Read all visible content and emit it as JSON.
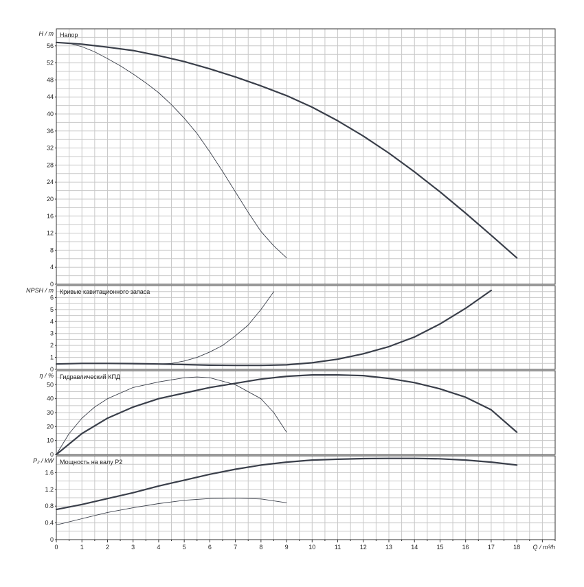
{
  "chart_data": {
    "type": "line",
    "xlabel": "Q / m³/h",
    "xlim": [
      0,
      19.5
    ],
    "xticks": [
      0,
      1,
      2,
      3,
      4,
      5,
      6,
      7,
      8,
      9,
      10,
      11,
      12,
      13,
      14,
      15,
      16,
      17,
      18
    ],
    "panels": [
      {
        "id": "head",
        "title": "Напор",
        "ylabel": "H / m",
        "ylim": [
          0,
          60
        ],
        "yticks": [
          0,
          4,
          8,
          12,
          16,
          20,
          24,
          28,
          32,
          36,
          40,
          44,
          48,
          52,
          56
        ],
        "series": [
          {
            "style": "thick",
            "x": [
              0,
              1,
              2,
              3,
              4,
              5,
              6,
              7,
              8,
              9,
              10,
              11,
              12,
              13,
              14,
              15,
              16,
              17,
              18
            ],
            "y": [
              56.8,
              56.4,
              55.7,
              54.9,
              53.7,
              52.3,
              50.6,
              48.7,
              46.6,
              44.3,
              41.6,
              38.4,
              34.8,
              30.8,
              26.4,
              21.7,
              16.7,
              11.5,
              6.2
            ]
          },
          {
            "style": "thin",
            "x": [
              0,
              0.5,
              1,
              1.5,
              2,
              2.5,
              3,
              3.5,
              4,
              4.5,
              5,
              5.5,
              6,
              6.5,
              7,
              7.5,
              8,
              8.5,
              9
            ],
            "y": [
              56.8,
              56.6,
              55.8,
              54.6,
              53.0,
              51.3,
              49.4,
              47.3,
              45.0,
              42.2,
              39.0,
              35.4,
              31.1,
              26.5,
              21.7,
              16.9,
              12.4,
              9.0,
              6.2
            ]
          }
        ]
      },
      {
        "id": "npsh",
        "title": "Кривые кавитационного запаса",
        "ylabel": "NPSH / m",
        "ylim": [
          0,
          7
        ],
        "yticks": [
          0,
          1,
          2,
          3,
          4,
          5,
          6
        ],
        "series": [
          {
            "style": "thick",
            "x": [
              0,
              1,
              2,
              3,
              4,
              5,
              6,
              7,
              8,
              9,
              10,
              11,
              12,
              13,
              14,
              15,
              16,
              17
            ],
            "y": [
              0.45,
              0.5,
              0.5,
              0.48,
              0.45,
              0.4,
              0.35,
              0.33,
              0.33,
              0.38,
              0.55,
              0.85,
              1.3,
              1.9,
              2.7,
              3.8,
              5.1,
              6.6
            ]
          },
          {
            "style": "thin",
            "x": [
              3,
              4,
              4.5,
              5,
              5.5,
              6,
              6.5,
              7,
              7.5,
              8,
              8.5
            ],
            "y": [
              0.45,
              0.45,
              0.5,
              0.7,
              1.0,
              1.45,
              2.0,
              2.8,
              3.7,
              5.0,
              6.5
            ]
          }
        ]
      },
      {
        "id": "efficiency",
        "title": "Гидравлический КПД",
        "ylabel": "η / %",
        "ylim": [
          0,
          60
        ],
        "yticks": [
          0,
          10,
          20,
          30,
          40,
          50
        ],
        "series": [
          {
            "style": "thick",
            "x": [
              0,
              1,
              2,
              3,
              4,
              5,
              6,
              7,
              8,
              9,
              10,
              11,
              12,
              13,
              14,
              15,
              16,
              17,
              18
            ],
            "y": [
              0,
              15,
              26,
              34,
              40,
              44,
              48,
              51,
              54,
              56,
              57,
              57,
              56.5,
              54.5,
              51.5,
              47,
              41,
              32,
              16
            ]
          },
          {
            "style": "thin",
            "x": [
              0,
              0.5,
              1,
              1.5,
              2,
              3,
              4,
              5,
              5.5,
              6,
              7,
              8,
              8.5,
              9
            ],
            "y": [
              0,
              15,
              26,
              34,
              40,
              48,
              52,
              55,
              55.5,
              55,
              50,
              40,
              30,
              16
            ]
          }
        ]
      },
      {
        "id": "power",
        "title": "Мощность на валу P2",
        "ylabel": "P₂ / kW",
        "ylim": [
          0,
          2.0
        ],
        "yticks": [
          0,
          0.4,
          0.8,
          1.2,
          1.6
        ],
        "series": [
          {
            "style": "thick",
            "x": [
              0,
              1,
              2,
              3,
              4,
              5,
              6,
              7,
              8,
              9,
              10,
              11,
              12,
              13,
              14,
              15,
              16,
              17,
              18
            ],
            "y": [
              0.72,
              0.84,
              0.98,
              1.12,
              1.28,
              1.42,
              1.56,
              1.68,
              1.78,
              1.85,
              1.9,
              1.92,
              1.935,
              1.94,
              1.94,
              1.93,
              1.9,
              1.85,
              1.78
            ]
          },
          {
            "style": "thin",
            "x": [
              0,
              1,
              2,
              3,
              4,
              5,
              6,
              7,
              8,
              9
            ],
            "y": [
              0.35,
              0.5,
              0.65,
              0.76,
              0.86,
              0.94,
              0.98,
              0.99,
              0.97,
              0.88
            ]
          }
        ]
      }
    ]
  }
}
